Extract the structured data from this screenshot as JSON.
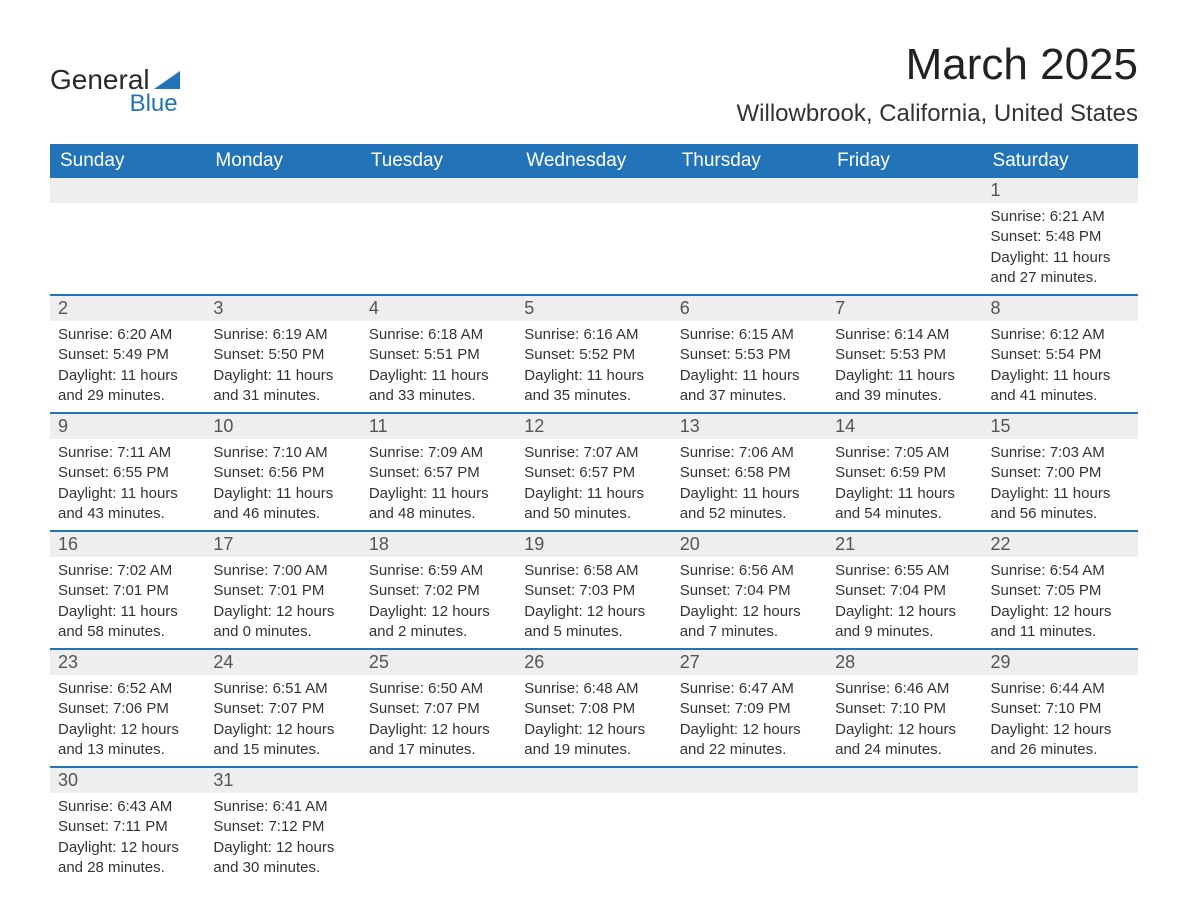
{
  "brand": {
    "name_part1": "General",
    "name_part2": "Blue",
    "accent_color": "#2373b8"
  },
  "title": "March 2025",
  "location": "Willowbrook, California, United States",
  "columns": [
    "Sunday",
    "Monday",
    "Tuesday",
    "Wednesday",
    "Thursday",
    "Friday",
    "Saturday"
  ],
  "colors": {
    "header_bg": "#2373b8",
    "header_text": "#ffffff",
    "row_divider": "#2373b8",
    "daynum_bg": "#eeeeee",
    "text": "#333333"
  },
  "weeks": [
    [
      {
        "day": "",
        "sunrise": "",
        "sunset": "",
        "daylight": ""
      },
      {
        "day": "",
        "sunrise": "",
        "sunset": "",
        "daylight": ""
      },
      {
        "day": "",
        "sunrise": "",
        "sunset": "",
        "daylight": ""
      },
      {
        "day": "",
        "sunrise": "",
        "sunset": "",
        "daylight": ""
      },
      {
        "day": "",
        "sunrise": "",
        "sunset": "",
        "daylight": ""
      },
      {
        "day": "",
        "sunrise": "",
        "sunset": "",
        "daylight": ""
      },
      {
        "day": "1",
        "sunrise": "Sunrise: 6:21 AM",
        "sunset": "Sunset: 5:48 PM",
        "daylight": "Daylight: 11 hours and 27 minutes."
      }
    ],
    [
      {
        "day": "2",
        "sunrise": "Sunrise: 6:20 AM",
        "sunset": "Sunset: 5:49 PM",
        "daylight": "Daylight: 11 hours and 29 minutes."
      },
      {
        "day": "3",
        "sunrise": "Sunrise: 6:19 AM",
        "sunset": "Sunset: 5:50 PM",
        "daylight": "Daylight: 11 hours and 31 minutes."
      },
      {
        "day": "4",
        "sunrise": "Sunrise: 6:18 AM",
        "sunset": "Sunset: 5:51 PM",
        "daylight": "Daylight: 11 hours and 33 minutes."
      },
      {
        "day": "5",
        "sunrise": "Sunrise: 6:16 AM",
        "sunset": "Sunset: 5:52 PM",
        "daylight": "Daylight: 11 hours and 35 minutes."
      },
      {
        "day": "6",
        "sunrise": "Sunrise: 6:15 AM",
        "sunset": "Sunset: 5:53 PM",
        "daylight": "Daylight: 11 hours and 37 minutes."
      },
      {
        "day": "7",
        "sunrise": "Sunrise: 6:14 AM",
        "sunset": "Sunset: 5:53 PM",
        "daylight": "Daylight: 11 hours and 39 minutes."
      },
      {
        "day": "8",
        "sunrise": "Sunrise: 6:12 AM",
        "sunset": "Sunset: 5:54 PM",
        "daylight": "Daylight: 11 hours and 41 minutes."
      }
    ],
    [
      {
        "day": "9",
        "sunrise": "Sunrise: 7:11 AM",
        "sunset": "Sunset: 6:55 PM",
        "daylight": "Daylight: 11 hours and 43 minutes."
      },
      {
        "day": "10",
        "sunrise": "Sunrise: 7:10 AM",
        "sunset": "Sunset: 6:56 PM",
        "daylight": "Daylight: 11 hours and 46 minutes."
      },
      {
        "day": "11",
        "sunrise": "Sunrise: 7:09 AM",
        "sunset": "Sunset: 6:57 PM",
        "daylight": "Daylight: 11 hours and 48 minutes."
      },
      {
        "day": "12",
        "sunrise": "Sunrise: 7:07 AM",
        "sunset": "Sunset: 6:57 PM",
        "daylight": "Daylight: 11 hours and 50 minutes."
      },
      {
        "day": "13",
        "sunrise": "Sunrise: 7:06 AM",
        "sunset": "Sunset: 6:58 PM",
        "daylight": "Daylight: 11 hours and 52 minutes."
      },
      {
        "day": "14",
        "sunrise": "Sunrise: 7:05 AM",
        "sunset": "Sunset: 6:59 PM",
        "daylight": "Daylight: 11 hours and 54 minutes."
      },
      {
        "day": "15",
        "sunrise": "Sunrise: 7:03 AM",
        "sunset": "Sunset: 7:00 PM",
        "daylight": "Daylight: 11 hours and 56 minutes."
      }
    ],
    [
      {
        "day": "16",
        "sunrise": "Sunrise: 7:02 AM",
        "sunset": "Sunset: 7:01 PM",
        "daylight": "Daylight: 11 hours and 58 minutes."
      },
      {
        "day": "17",
        "sunrise": "Sunrise: 7:00 AM",
        "sunset": "Sunset: 7:01 PM",
        "daylight": "Daylight: 12 hours and 0 minutes."
      },
      {
        "day": "18",
        "sunrise": "Sunrise: 6:59 AM",
        "sunset": "Sunset: 7:02 PM",
        "daylight": "Daylight: 12 hours and 2 minutes."
      },
      {
        "day": "19",
        "sunrise": "Sunrise: 6:58 AM",
        "sunset": "Sunset: 7:03 PM",
        "daylight": "Daylight: 12 hours and 5 minutes."
      },
      {
        "day": "20",
        "sunrise": "Sunrise: 6:56 AM",
        "sunset": "Sunset: 7:04 PM",
        "daylight": "Daylight: 12 hours and 7 minutes."
      },
      {
        "day": "21",
        "sunrise": "Sunrise: 6:55 AM",
        "sunset": "Sunset: 7:04 PM",
        "daylight": "Daylight: 12 hours and 9 minutes."
      },
      {
        "day": "22",
        "sunrise": "Sunrise: 6:54 AM",
        "sunset": "Sunset: 7:05 PM",
        "daylight": "Daylight: 12 hours and 11 minutes."
      }
    ],
    [
      {
        "day": "23",
        "sunrise": "Sunrise: 6:52 AM",
        "sunset": "Sunset: 7:06 PM",
        "daylight": "Daylight: 12 hours and 13 minutes."
      },
      {
        "day": "24",
        "sunrise": "Sunrise: 6:51 AM",
        "sunset": "Sunset: 7:07 PM",
        "daylight": "Daylight: 12 hours and 15 minutes."
      },
      {
        "day": "25",
        "sunrise": "Sunrise: 6:50 AM",
        "sunset": "Sunset: 7:07 PM",
        "daylight": "Daylight: 12 hours and 17 minutes."
      },
      {
        "day": "26",
        "sunrise": "Sunrise: 6:48 AM",
        "sunset": "Sunset: 7:08 PM",
        "daylight": "Daylight: 12 hours and 19 minutes."
      },
      {
        "day": "27",
        "sunrise": "Sunrise: 6:47 AM",
        "sunset": "Sunset: 7:09 PM",
        "daylight": "Daylight: 12 hours and 22 minutes."
      },
      {
        "day": "28",
        "sunrise": "Sunrise: 6:46 AM",
        "sunset": "Sunset: 7:10 PM",
        "daylight": "Daylight: 12 hours and 24 minutes."
      },
      {
        "day": "29",
        "sunrise": "Sunrise: 6:44 AM",
        "sunset": "Sunset: 7:10 PM",
        "daylight": "Daylight: 12 hours and 26 minutes."
      }
    ],
    [
      {
        "day": "30",
        "sunrise": "Sunrise: 6:43 AM",
        "sunset": "Sunset: 7:11 PM",
        "daylight": "Daylight: 12 hours and 28 minutes."
      },
      {
        "day": "31",
        "sunrise": "Sunrise: 6:41 AM",
        "sunset": "Sunset: 7:12 PM",
        "daylight": "Daylight: 12 hours and 30 minutes."
      },
      {
        "day": "",
        "sunrise": "",
        "sunset": "",
        "daylight": ""
      },
      {
        "day": "",
        "sunrise": "",
        "sunset": "",
        "daylight": ""
      },
      {
        "day": "",
        "sunrise": "",
        "sunset": "",
        "daylight": ""
      },
      {
        "day": "",
        "sunrise": "",
        "sunset": "",
        "daylight": ""
      },
      {
        "day": "",
        "sunrise": "",
        "sunset": "",
        "daylight": ""
      }
    ]
  ]
}
